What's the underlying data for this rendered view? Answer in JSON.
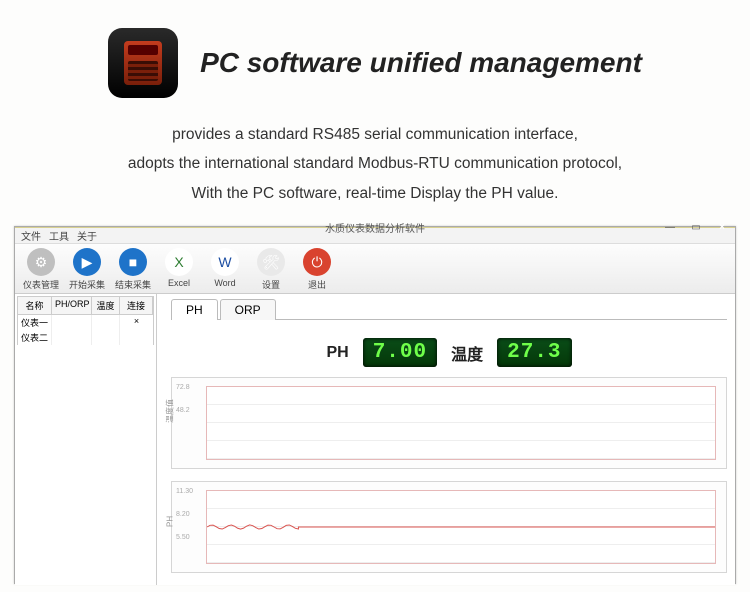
{
  "hero": {
    "title": "PC software unified management",
    "desc_line1": "provides a standard RS485 serial communication interface,",
    "desc_line2": "adopts the international standard Modbus-RTU communication protocol,",
    "desc_line3": "With the PC software, real-time Display the PH value."
  },
  "window": {
    "title": "水质仪表数据分析软件",
    "controls": {
      "min": "—",
      "max": "▭",
      "close": "×"
    }
  },
  "menubar": {
    "items": [
      "文件",
      "工具",
      "关于"
    ]
  },
  "toolbar": {
    "items": [
      {
        "label": "仪表管理",
        "icon_bg": "#bfbfbf",
        "glyph": "⚙"
      },
      {
        "label": "开始采集",
        "icon_bg": "#1e73c9",
        "glyph": "▶"
      },
      {
        "label": "结束采集",
        "icon_bg": "#1e73c9",
        "glyph": "■"
      },
      {
        "label": "Excel",
        "icon_bg": "#ffffff",
        "glyph": "X",
        "text_color": "#2e7d32"
      },
      {
        "label": "Word",
        "icon_bg": "#ffffff",
        "glyph": "W",
        "text_color": "#1e4fa3"
      },
      {
        "label": "设置",
        "icon_bg": "#e9e9e9",
        "glyph": "🛠"
      },
      {
        "label": "退出",
        "icon_bg": "#d9432f",
        "glyph": "⏻"
      }
    ]
  },
  "sidebar": {
    "headers": {
      "name": "名称",
      "phorp": "PH/ORP",
      "temp": "温度",
      "conn": "连接"
    },
    "rows": [
      {
        "name": "仪表一",
        "conn": "×"
      },
      {
        "name": "仪表二",
        "conn": ""
      }
    ]
  },
  "tabs": {
    "ph": "PH",
    "orp": "ORP"
  },
  "readout": {
    "ph_label": "PH",
    "ph_value": "7.00",
    "temp_label": "温度",
    "temp_value": "27.3"
  },
  "chart1": {
    "background": "#ffffff",
    "border_color": "#e6b8b8",
    "yticks": [
      "72.8",
      "48.2"
    ],
    "axis_title": "温度值",
    "series_color": "#d9534f",
    "line_width": 1,
    "ylim": [
      0,
      100
    ],
    "flat_value": 27
  },
  "chart2": {
    "background": "#ffffff",
    "border_color": "#e6b8b8",
    "yticks": [
      "11.30",
      "8.20",
      "5.50"
    ],
    "axis_title": "PH",
    "series_color": "#d9534f",
    "line_width": 1,
    "ylim": [
      0,
      14
    ],
    "wave_center": 7,
    "wave_amp": 0.4
  },
  "colors": {
    "lcd_bg": "#043808",
    "lcd_text": "#6fff4a",
    "titlebar_bg": "#fdf6c7",
    "close_bg": "#d9432f"
  }
}
